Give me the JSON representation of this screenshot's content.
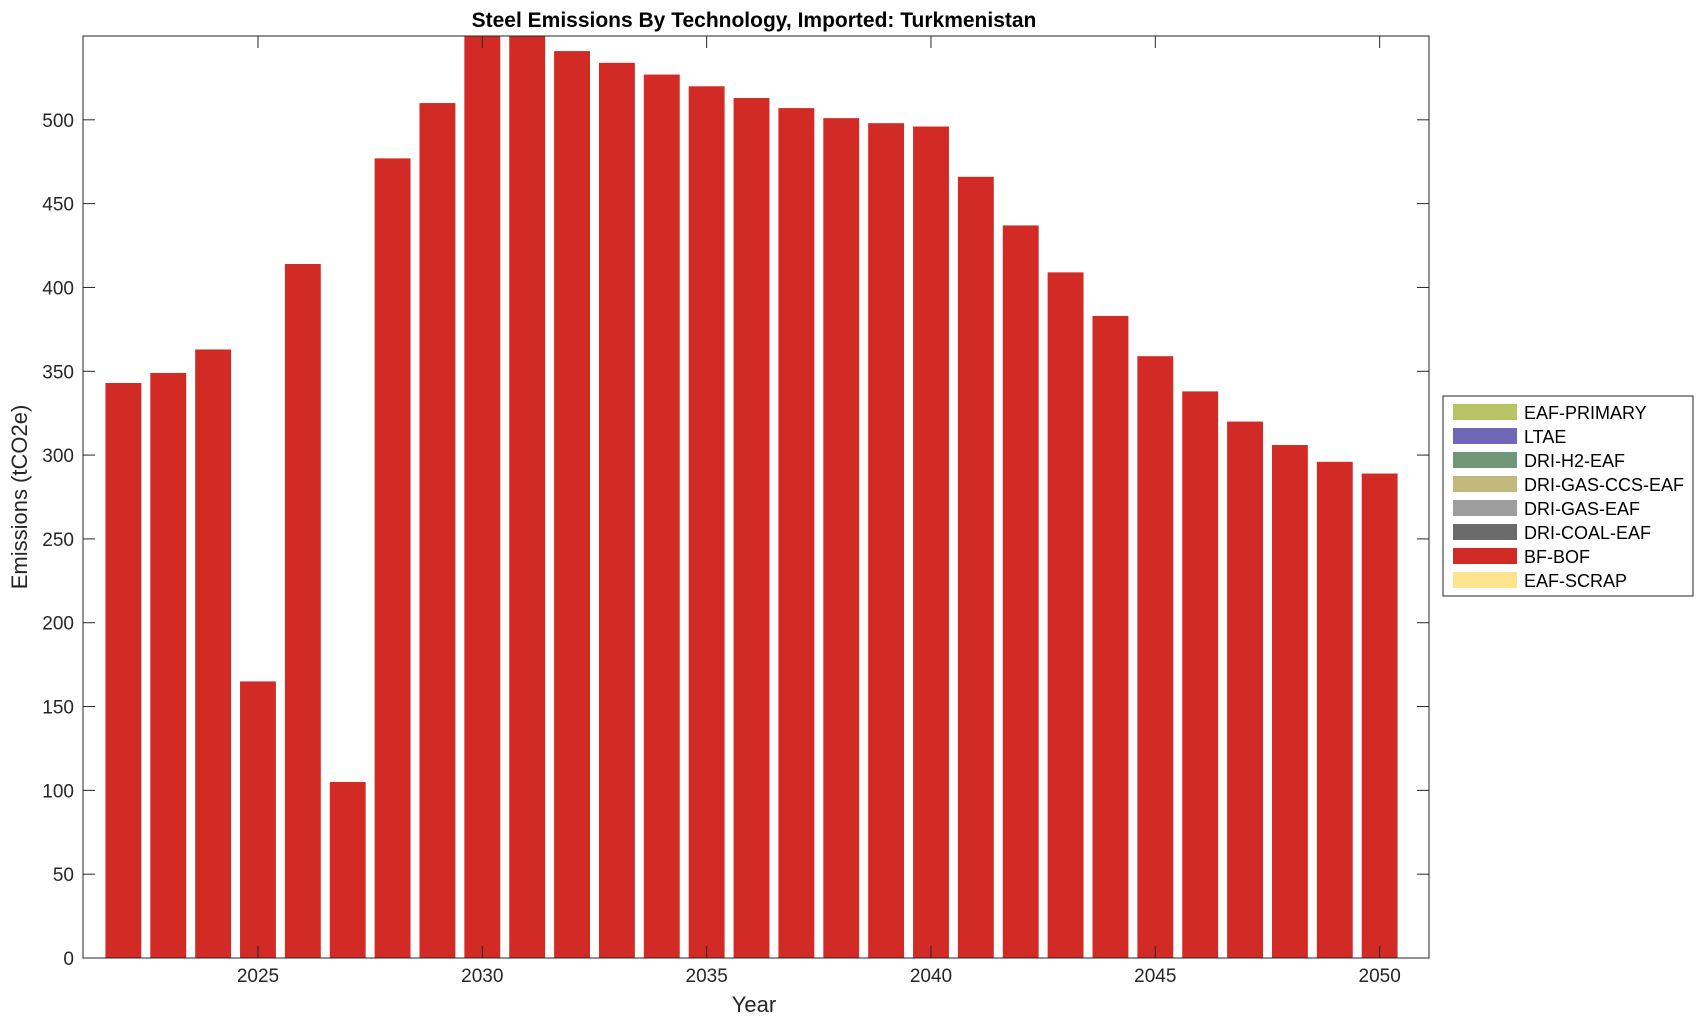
{
  "chart_data": {
    "type": "bar",
    "stacked": true,
    "title": "Steel Emissions By Technology, Imported: Turkmenistan",
    "xlabel": "Year",
    "ylabel": "Emissions (tCO2e)",
    "xlim": [
      2021.1,
      2051.1
    ],
    "ylim": [
      0,
      550
    ],
    "xticks": [
      2025,
      2030,
      2035,
      2040,
      2045,
      2050
    ],
    "yticks": [
      0,
      50,
      100,
      150,
      200,
      250,
      300,
      350,
      400,
      450,
      500
    ],
    "grid": false,
    "legend_position": "right",
    "x": [
      2022,
      2023,
      2024,
      2025,
      2026,
      2027,
      2028,
      2029,
      2030,
      2031,
      2032,
      2033,
      2034,
      2035,
      2036,
      2037,
      2038,
      2039,
      2040,
      2041,
      2042,
      2043,
      2044,
      2045,
      2046,
      2047,
      2048,
      2049,
      2050
    ],
    "series": [
      {
        "name": "EAF-PRIMARY",
        "color": "#b8c466",
        "values": [
          0,
          0,
          0,
          0,
          0,
          0,
          0,
          0,
          0,
          0,
          0,
          0,
          0,
          0,
          0,
          0,
          0,
          0,
          0,
          0,
          0,
          0,
          0,
          0,
          0,
          0,
          0,
          0,
          0
        ]
      },
      {
        "name": "LTAE",
        "color": "#7067b8",
        "values": [
          0,
          0,
          0,
          0,
          0,
          0,
          0,
          0,
          0,
          0,
          0,
          0,
          0,
          0,
          0,
          0,
          0,
          0,
          0,
          0,
          0,
          0,
          0,
          0,
          0,
          0,
          0,
          0,
          0
        ]
      },
      {
        "name": "DRI-H2-EAF",
        "color": "#729778",
        "values": [
          0,
          0,
          0,
          0,
          0,
          0,
          0,
          0,
          0,
          0,
          0,
          0,
          0,
          0,
          0,
          0,
          0,
          0,
          0,
          0,
          0,
          0,
          0,
          0,
          0,
          0,
          0,
          0,
          0
        ]
      },
      {
        "name": "DRI-GAS-CCS-EAF",
        "color": "#c2b97c",
        "values": [
          0,
          0,
          0,
          0,
          0,
          0,
          0,
          0,
          0,
          0,
          0,
          0,
          0,
          0,
          0,
          0,
          0,
          0,
          0,
          0,
          0,
          0,
          0,
          0,
          0,
          0,
          0,
          0,
          0
        ]
      },
      {
        "name": "DRI-GAS-EAF",
        "color": "#9e9e9e",
        "values": [
          0,
          0,
          0,
          0,
          0,
          0,
          0,
          0,
          0,
          0,
          0,
          0,
          0,
          0,
          0,
          0,
          0,
          0,
          0,
          0,
          0,
          0,
          0,
          0,
          0,
          0,
          0,
          0,
          0
        ]
      },
      {
        "name": "DRI-COAL-EAF",
        "color": "#6b6b6b",
        "values": [
          0,
          0,
          0,
          0,
          0,
          0,
          0,
          0,
          0,
          0,
          0,
          0,
          0,
          0,
          0,
          0,
          0,
          0,
          0,
          0,
          0,
          0,
          0,
          0,
          0,
          0,
          0,
          0,
          0
        ]
      },
      {
        "name": "BF-BOF",
        "color": "#d22b26",
        "values": [
          343,
          349,
          363,
          165,
          414,
          105,
          477,
          510,
          560,
          560,
          541,
          534,
          527,
          520,
          513,
          507,
          501,
          498,
          496,
          466,
          437,
          409,
          383,
          359,
          338,
          320,
          306,
          296,
          289
        ]
      },
      {
        "name": "EAF-SCRAP",
        "color": "#fde38e",
        "values": [
          0,
          0,
          0,
          0,
          0,
          0,
          0,
          0,
          0,
          0,
          0,
          0,
          0,
          0,
          0,
          0,
          0,
          0,
          0,
          0,
          0,
          0,
          0,
          0,
          0,
          0,
          0,
          0,
          0
        ]
      }
    ]
  }
}
